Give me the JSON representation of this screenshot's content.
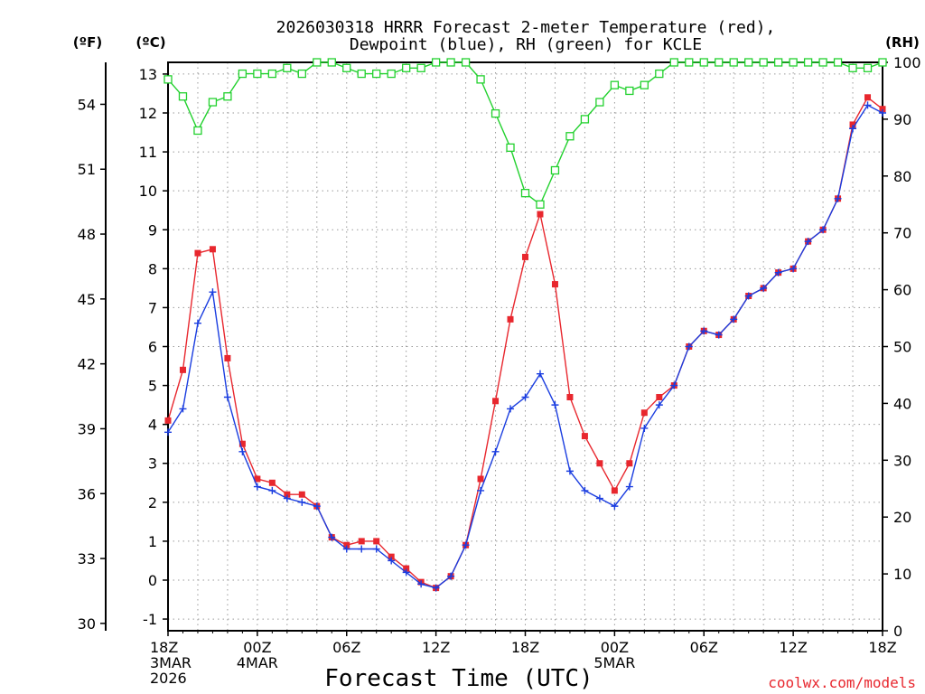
{
  "chart_data": {
    "type": "line",
    "title": [
      "2026030318 HRRR Forecast 2-meter Temperature (red),",
      "Dewpoint (blue), RH (green) for KCLE"
    ],
    "xlabel": "Forecast Time (UTC)",
    "credit": "coolwx.com/models",
    "units": {
      "fahrenheit": "(ºF)",
      "celsius": "(ºC)",
      "rh": "(RH)"
    },
    "x_hours": [
      0,
      1,
      2,
      3,
      4,
      5,
      6,
      7,
      8,
      9,
      10,
      11,
      12,
      13,
      14,
      15,
      16,
      17,
      18,
      19,
      20,
      21,
      22,
      23,
      24,
      25,
      26,
      27,
      28,
      29,
      30,
      31,
      32,
      33,
      34,
      35,
      36,
      37,
      38,
      39,
      40,
      41,
      42,
      43,
      44,
      45,
      46,
      47,
      48
    ],
    "xlim": [
      0,
      48
    ],
    "x_ticks": [
      {
        "hour": 0,
        "lines": [
          "18Z",
          "3MAR",
          "2026"
        ]
      },
      {
        "hour": 6,
        "lines": [
          "00Z",
          "4MAR"
        ]
      },
      {
        "hour": 12,
        "lines": [
          "06Z"
        ]
      },
      {
        "hour": 18,
        "lines": [
          "12Z"
        ]
      },
      {
        "hour": 24,
        "lines": [
          "18Z"
        ]
      },
      {
        "hour": 30,
        "lines": [
          "00Z",
          "5MAR"
        ]
      },
      {
        "hour": 36,
        "lines": [
          "06Z"
        ]
      },
      {
        "hour": 42,
        "lines": [
          "12Z"
        ]
      },
      {
        "hour": 48,
        "lines": [
          "18Z"
        ]
      }
    ],
    "celsius_axis": {
      "ylim": [
        -1.3,
        13.3
      ],
      "ticks": [
        -1,
        0,
        1,
        2,
        3,
        4,
        5,
        6,
        7,
        8,
        9,
        10,
        11,
        12,
        13
      ]
    },
    "fahrenheit_axis": {
      "ticks": [
        30,
        33,
        36,
        39,
        42,
        45,
        48,
        51,
        54
      ]
    },
    "rh_axis": {
      "ylim": [
        0,
        100
      ],
      "ticks": [
        0,
        10,
        20,
        30,
        40,
        50,
        60,
        70,
        80,
        90,
        100
      ]
    },
    "series": [
      {
        "name": "Temperature",
        "color": "#e8272e",
        "axis": "celsius",
        "marker": "square-filled",
        "values": [
          4.1,
          5.4,
          8.4,
          8.5,
          5.7,
          3.5,
          2.6,
          2.5,
          2.2,
          2.2,
          1.9,
          1.1,
          0.9,
          1.0,
          1.0,
          0.6,
          0.3,
          -0.05,
          -0.2,
          0.1,
          0.9,
          2.6,
          4.6,
          6.7,
          8.3,
          9.4,
          7.6,
          4.7,
          3.7,
          3.0,
          2.3,
          3.0,
          4.3,
          4.7,
          5.0,
          6.0,
          6.4,
          6.3,
          6.7,
          7.3,
          7.5,
          7.9,
          8.0,
          8.7,
          9.0,
          9.8,
          11.7,
          12.4,
          12.1
        ]
      },
      {
        "name": "Dewpoint",
        "color": "#1a3de0",
        "axis": "celsius",
        "marker": "plus",
        "values": [
          3.8,
          4.4,
          6.6,
          7.4,
          4.7,
          3.3,
          2.4,
          2.3,
          2.1,
          2.0,
          1.9,
          1.1,
          0.8,
          0.8,
          0.8,
          0.5,
          0.2,
          -0.1,
          -0.2,
          0.1,
          0.9,
          2.3,
          3.3,
          4.4,
          4.7,
          5.3,
          4.5,
          2.8,
          2.3,
          2.1,
          1.9,
          2.4,
          3.9,
          4.5,
          5.0,
          6.0,
          6.4,
          6.3,
          6.7,
          7.3,
          7.5,
          7.9,
          8.0,
          8.7,
          9.0,
          9.8,
          11.6,
          12.2,
          12.0
        ]
      },
      {
        "name": "RH",
        "color": "#22d12e",
        "axis": "rh",
        "marker": "square-open",
        "values": [
          97,
          94,
          88,
          93,
          94,
          98,
          98,
          98,
          99,
          98,
          100,
          100,
          99,
          98,
          98,
          98,
          99,
          99,
          100,
          100,
          100,
          97,
          91,
          85,
          77,
          75,
          81,
          87,
          90,
          93,
          96,
          95,
          96,
          98,
          100,
          100,
          100,
          100,
          100,
          100,
          100,
          100,
          100,
          100,
          100,
          100,
          99,
          99,
          100
        ]
      }
    ]
  }
}
